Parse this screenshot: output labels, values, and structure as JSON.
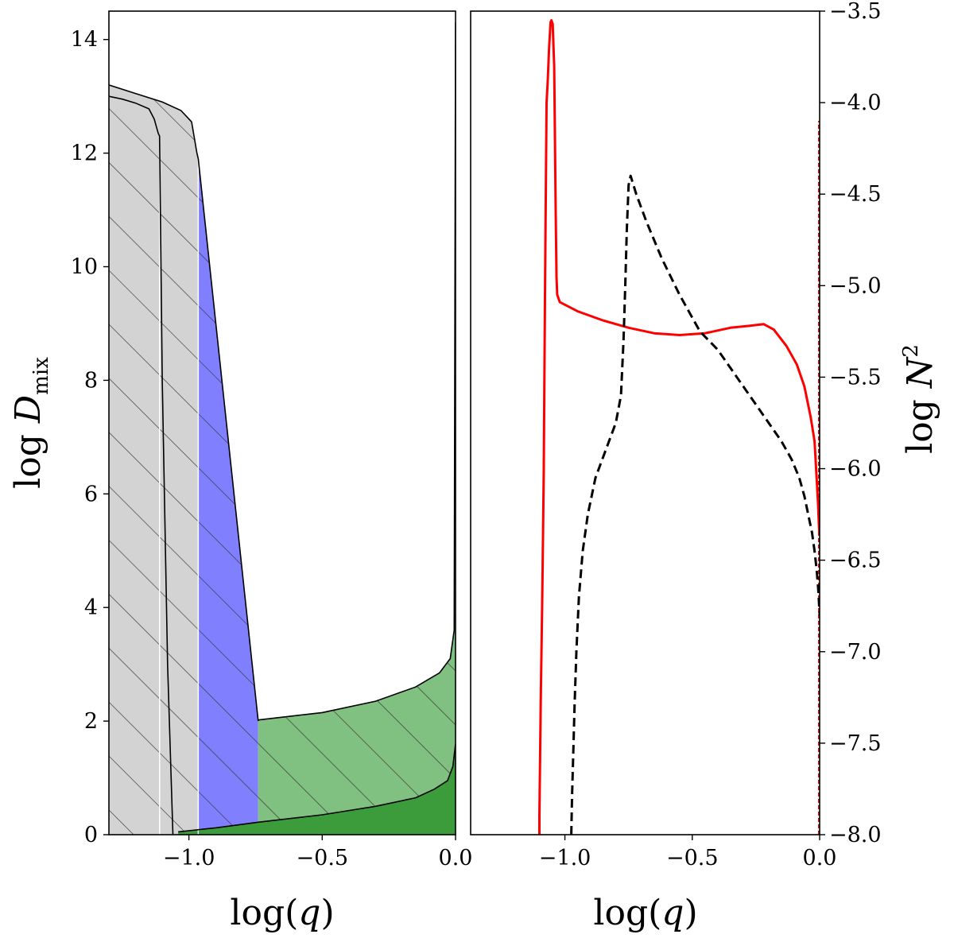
{
  "chart_data": [
    {
      "type": "area",
      "panel": "left",
      "xlim": [
        -1.3,
        0.0
      ],
      "ylim": [
        0,
        14.5
      ],
      "xticks": [
        -1.0,
        -0.5,
        0.0
      ],
      "xtick_labels": [
        "−1.0",
        "−0.5",
        "0.0"
      ],
      "yticks": [
        0,
        2,
        4,
        6,
        8,
        10,
        12,
        14
      ],
      "ytick_labels": [
        "0",
        "2",
        "4",
        "6",
        "8",
        "10",
        "12",
        "14"
      ],
      "xlabel": {
        "main": "log(",
        "var": "q",
        "close": ")"
      },
      "ylabel": {
        "main": "log ",
        "var": "D",
        "sub": "mix"
      },
      "grid": false,
      "colors": {
        "dark_gray": "#a9a9a9",
        "light_gray": "#d3d3d3",
        "blue": "#8080ff",
        "light_green": "#80c080",
        "dark_green": "#3c9c3c"
      },
      "regions": [
        {
          "name": "convective core",
          "color": "#a9a9a9",
          "hatch": false,
          "x": [
            -1.3,
            -1.25,
            -1.2,
            -1.15,
            -1.13,
            -1.115,
            -1.11,
            -1.11,
            -1.3
          ],
          "y_top": [
            13.0,
            12.95,
            12.88,
            12.78,
            12.6,
            12.35,
            12.3,
            0,
            0
          ]
        },
        {
          "name": "overshoot",
          "color": "#d3d3d3",
          "hatch": true,
          "x": [
            -1.3,
            -1.2,
            -1.1,
            -1.03,
            -0.99,
            -0.97,
            -0.965
          ],
          "y_top": [
            13.2,
            13.05,
            12.9,
            12.75,
            12.55,
            12.0,
            11.9
          ]
        },
        {
          "name": "blue band",
          "color": "#8080ff",
          "hatch": true,
          "x": [
            -0.965,
            -0.74
          ],
          "y_top": [
            11.9,
            2.0
          ]
        },
        {
          "name": "green envelope",
          "color": "#80c080",
          "hatch": true,
          "x": [
            -0.74,
            -0.5,
            -0.3,
            -0.15,
            -0.06,
            -0.02,
            -0.005,
            0.0
          ],
          "y_top": [
            2.02,
            2.15,
            2.35,
            2.6,
            2.85,
            3.1,
            3.6,
            14.3
          ]
        },
        {
          "name": "dark green base",
          "color": "#3c9c3c",
          "hatch": false,
          "x": [
            -1.04,
            -0.9,
            -0.74,
            -0.5,
            -0.3,
            -0.15,
            -0.08,
            -0.03,
            -0.01,
            0.0
          ],
          "y_top": [
            0.05,
            0.12,
            0.22,
            0.35,
            0.5,
            0.65,
            0.8,
            0.95,
            1.2,
            1.6
          ]
        }
      ]
    },
    {
      "type": "line",
      "panel": "right",
      "xlim": [
        -1.3,
        0.0
      ],
      "ylim": [
        -8.0,
        -3.5
      ],
      "xticks": [
        -1.0,
        -0.5,
        0.0
      ],
      "xtick_labels": [
        "−1.0",
        "−0.5",
        "0.0"
      ],
      "yticks": [
        -8.0,
        -7.5,
        -7.0,
        -6.5,
        -6.0,
        -5.5,
        -5.0,
        -4.5,
        -4.0,
        -3.5
      ],
      "ytick_labels": [
        "−8.0",
        "−7.5",
        "−7.0",
        "−6.5",
        "−6.0",
        "−5.5",
        "−5.0",
        "−4.5",
        "−4.0",
        "−3.5"
      ],
      "xlabel": {
        "main": "log(",
        "var": "q",
        "close": ")"
      },
      "ylabel": {
        "main": "log ",
        "var": "N",
        "sup": "2"
      },
      "yaxis_side": "right",
      "grid": false,
      "series": [
        {
          "color": "#ff0000",
          "style": "solid",
          "x": [
            -1.1,
            -1.1,
            -1.095,
            -1.088,
            -1.083,
            -1.078,
            -1.072,
            -1.068,
            -1.062,
            -1.058,
            -1.056,
            -1.053,
            -1.048,
            -1.042,
            -1.036,
            -1.033,
            -1.03,
            -1.02,
            -0.95,
            -0.85,
            -0.75,
            -0.65,
            -0.55,
            -0.45,
            -0.35,
            -0.28,
            -0.22,
            -0.18,
            -0.13,
            -0.09,
            -0.06,
            -0.035,
            -0.02,
            -0.012,
            -0.006,
            -0.003,
            -0.001
          ],
          "y": [
            -8.0,
            -7.9,
            -7.3,
            -6.6,
            -6.0,
            -5.0,
            -4.0,
            -3.9,
            -3.7,
            -3.6,
            -3.56,
            -3.55,
            -3.57,
            -3.8,
            -4.6,
            -4.95,
            -5.05,
            -5.09,
            -5.14,
            -5.19,
            -5.23,
            -5.26,
            -5.27,
            -5.26,
            -5.23,
            -5.22,
            -5.21,
            -5.24,
            -5.33,
            -5.43,
            -5.55,
            -5.72,
            -5.85,
            -6.05,
            -6.2,
            -6.3,
            -6.35
          ]
        },
        {
          "color": "#ff0000",
          "style": "dashed",
          "x": [
            -0.003,
            -0.003
          ],
          "y": [
            -8.0,
            -4.1
          ]
        },
        {
          "color": "#000000",
          "style": "dashed",
          "x": [
            -0.975,
            -0.972,
            -0.968,
            -0.962,
            -0.955,
            -0.945,
            -0.93,
            -0.91,
            -0.88,
            -0.84,
            -0.8,
            -0.78,
            -0.77,
            -0.763,
            -0.757,
            -0.75,
            -0.745,
            -0.742,
            -0.72,
            -0.68,
            -0.62,
            -0.55,
            -0.47,
            -0.4,
            -0.35,
            -0.3,
            -0.25,
            -0.2,
            -0.15,
            -0.11,
            -0.08,
            -0.06,
            -0.045,
            -0.03,
            -0.02,
            -0.012,
            -0.006,
            -0.002,
            0.0
          ],
          "y": [
            -8.0,
            -7.8,
            -7.6,
            -7.3,
            -7.0,
            -6.7,
            -6.45,
            -6.25,
            -6.05,
            -5.9,
            -5.75,
            -5.6,
            -5.3,
            -5.0,
            -4.7,
            -4.45,
            -4.42,
            -4.4,
            -4.5,
            -4.65,
            -4.85,
            -5.05,
            -5.25,
            -5.35,
            -5.45,
            -5.55,
            -5.65,
            -5.75,
            -5.85,
            -5.95,
            -6.05,
            -6.15,
            -6.25,
            -6.35,
            -6.45,
            -6.55,
            -6.65,
            -6.75,
            -6.8
          ]
        }
      ]
    }
  ]
}
